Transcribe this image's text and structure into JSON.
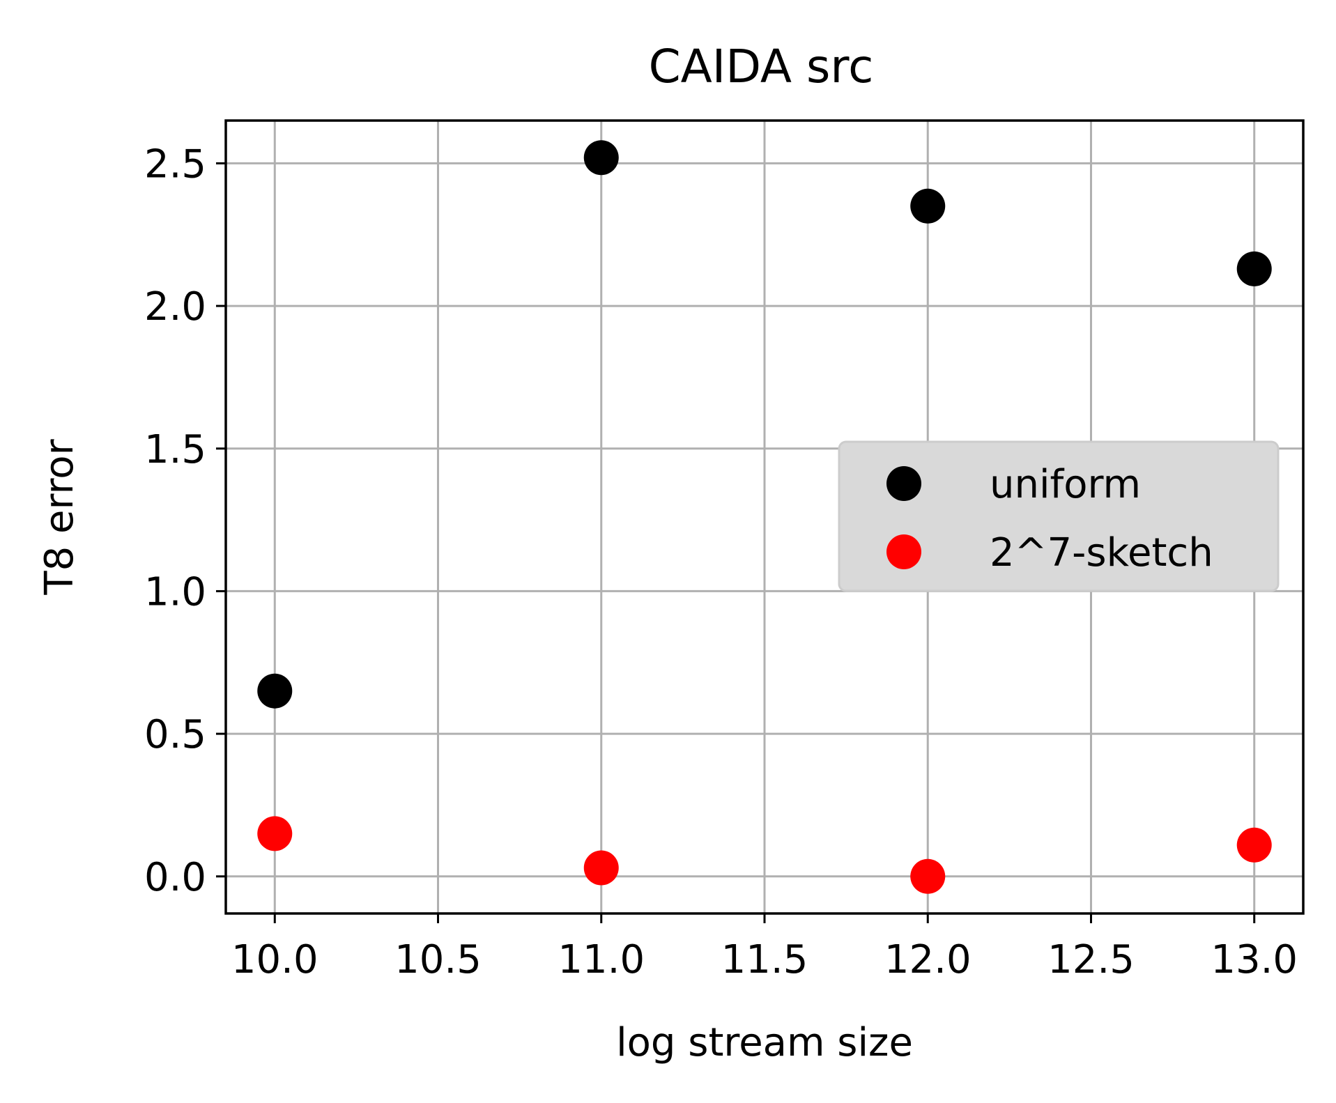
{
  "chart_data": {
    "type": "scatter",
    "title": "CAIDA src",
    "xlabel": "log stream size",
    "ylabel": "T8 error",
    "xlim": [
      9.85,
      13.15
    ],
    "ylim": [
      -0.13,
      2.65
    ],
    "xticks": [
      10.0,
      10.5,
      11.0,
      11.5,
      12.0,
      12.5,
      13.0
    ],
    "xtick_labels": [
      "10.0",
      "10.5",
      "11.0",
      "11.5",
      "12.0",
      "12.5",
      "13.0"
    ],
    "yticks": [
      0.0,
      0.5,
      1.0,
      1.5,
      2.0,
      2.5
    ],
    "ytick_labels": [
      "0.0",
      "0.5",
      "1.0",
      "1.5",
      "2.0",
      "2.5"
    ],
    "grid": true,
    "legend_position": "center-right",
    "series": [
      {
        "name": "uniform",
        "color": "#000000",
        "x": [
          10,
          11,
          12,
          13
        ],
        "y": [
          0.65,
          2.52,
          2.35,
          2.13
        ]
      },
      {
        "name": "2^7-sketch",
        "color": "#ff0000",
        "x": [
          10,
          11,
          12,
          13
        ],
        "y": [
          0.15,
          0.03,
          0.0,
          0.11
        ]
      }
    ]
  }
}
